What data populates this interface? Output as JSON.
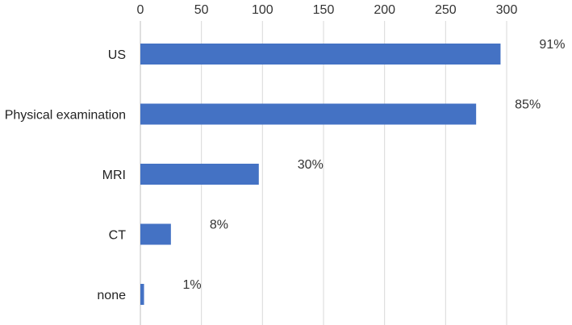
{
  "chart_data": {
    "type": "bar",
    "orientation": "horizontal",
    "categories": [
      "US",
      "Physical examination",
      "MRI",
      "CT",
      "none"
    ],
    "values": [
      295,
      275,
      97,
      25,
      3
    ],
    "data_labels": [
      "91%",
      "85%",
      "30%",
      "8%",
      "1%"
    ],
    "xlim": [
      0,
      300
    ],
    "x_ticks": [
      0,
      50,
      100,
      150,
      200,
      250,
      300
    ],
    "x_axis_position": "top",
    "grid": true,
    "bar_color": "#4472C4",
    "grid_color": "#D9D9D9"
  }
}
